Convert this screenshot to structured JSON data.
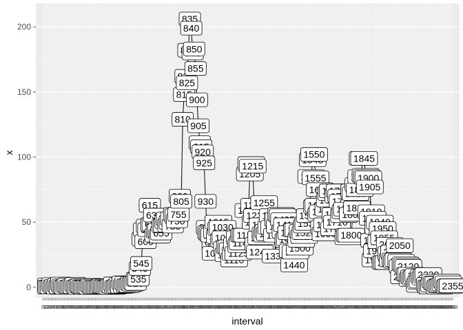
{
  "chart_data": {
    "type": "line",
    "xlabel": "interval",
    "ylabel": "x",
    "ylim": [
      -8,
      218
    ],
    "y_ticks": [
      0,
      50,
      100,
      150,
      200
    ],
    "grid": true,
    "background": "#ebebeb",
    "line_color": "#000000",
    "series": [
      {
        "values": [
          [
            0,
            1.7
          ],
          [
            5,
            0.3
          ],
          [
            10,
            0.1
          ],
          [
            15,
            0.2
          ],
          [
            20,
            0.1
          ],
          [
            25,
            2.1
          ],
          [
            30,
            0.5
          ],
          [
            35,
            0.9
          ],
          [
            40,
            0
          ],
          [
            45,
            1.5
          ],
          [
            50,
            0.3
          ],
          [
            55,
            0.1
          ],
          [
            100,
            0.3
          ],
          [
            105,
            2.5
          ],
          [
            110,
            1.1
          ],
          [
            115,
            0.3
          ],
          [
            120,
            0
          ],
          [
            125,
            1.1
          ],
          [
            130,
            1.8
          ],
          [
            135,
            0.2
          ],
          [
            140,
            0.2
          ],
          [
            145,
            0.7
          ],
          [
            150,
            0.3
          ],
          [
            155,
            2.2
          ],
          [
            200,
            0.3
          ],
          [
            205,
            0
          ],
          [
            210,
            1.1
          ],
          [
            215,
            1.2
          ],
          [
            220,
            0.4
          ],
          [
            225,
            0.1
          ],
          [
            230,
            0
          ],
          [
            235,
            0.3
          ],
          [
            240,
            0
          ],
          [
            245,
            0
          ],
          [
            250,
            1.5
          ],
          [
            255,
            0.9
          ],
          [
            300,
            0
          ],
          [
            305,
            0
          ],
          [
            310,
            0
          ],
          [
            315,
            0
          ],
          [
            320,
            0.2
          ],
          [
            325,
            0.6
          ],
          [
            330,
            1.2
          ],
          [
            335,
            0.5
          ],
          [
            340,
            0.5
          ],
          [
            345,
            0.1
          ],
          [
            350,
            0
          ],
          [
            355,
            0
          ],
          [
            400,
            1.2
          ],
          [
            405,
            0.9
          ],
          [
            410,
            2.6
          ],
          [
            415,
            0
          ],
          [
            420,
            0.4
          ],
          [
            425,
            0.9
          ],
          [
            430,
            2.1
          ],
          [
            435,
            0.6
          ],
          [
            440,
            3.5
          ],
          [
            445,
            0.8
          ],
          [
            450,
            3.1
          ],
          [
            455,
            1.1
          ],
          [
            500,
            1.5
          ],
          [
            505,
            1.3
          ],
          [
            510,
            3
          ],
          [
            515,
            2.2
          ],
          [
            520,
            3.3
          ],
          [
            525,
            3
          ],
          [
            530,
            6.3
          ],
          [
            535,
            6.3
          ],
          [
            540,
            14.4
          ],
          [
            545,
            18.3
          ],
          [
            550,
            37
          ],
          [
            555,
            44.3
          ],
          [
            600,
            35
          ],
          [
            605,
            47
          ],
          [
            610,
            44.2
          ],
          [
            615,
            63
          ],
          [
            620,
            48
          ],
          [
            625,
            48.6
          ],
          [
            630,
            55.4
          ],
          [
            635,
            40
          ],
          [
            640,
            43.2
          ],
          [
            645,
            43.6
          ],
          [
            650,
            39.3
          ],
          [
            655,
            41.6
          ],
          [
            700,
            47.2
          ],
          [
            705,
            47.5
          ],
          [
            710,
            50.2
          ],
          [
            715,
            52.4
          ],
          [
            720,
            47.6
          ],
          [
            725,
            49.9
          ],
          [
            730,
            52.7
          ],
          [
            735,
            47
          ],
          [
            740,
            56
          ],
          [
            745,
            55
          ],
          [
            750,
            51
          ],
          [
            755,
            56
          ],
          [
            800,
            70
          ],
          [
            805,
            66
          ],
          [
            810,
            129
          ],
          [
            815,
            148
          ],
          [
            820,
            162
          ],
          [
            825,
            157
          ],
          [
            830,
            182
          ],
          [
            835,
            206
          ],
          [
            840,
            199
          ],
          [
            845,
            180
          ],
          [
            850,
            183
          ],
          [
            855,
            168
          ],
          [
            900,
            144
          ],
          [
            905,
            124
          ],
          [
            910,
            111
          ],
          [
            915,
            108
          ],
          [
            920,
            104
          ],
          [
            925,
            95.6
          ],
          [
            930,
            66
          ],
          [
            935,
            46
          ],
          [
            940,
            42
          ],
          [
            945,
            41
          ],
          [
            950,
            40
          ],
          [
            955,
            33
          ],
          [
            1000,
            40
          ],
          [
            1005,
            26
          ],
          [
            1010,
            43
          ],
          [
            1015,
            50
          ],
          [
            1020,
            39
          ],
          [
            1025,
            45
          ],
          [
            1030,
            46
          ],
          [
            1035,
            36
          ],
          [
            1040,
            38
          ],
          [
            1045,
            30
          ],
          [
            1050,
            25
          ],
          [
            1055,
            31
          ],
          [
            1100,
            31
          ],
          [
            1105,
            29
          ],
          [
            1110,
            21
          ],
          [
            1115,
            26
          ],
          [
            1120,
            33
          ],
          [
            1125,
            26
          ],
          [
            1130,
            38
          ],
          [
            1135,
            32
          ],
          [
            1140,
            34
          ],
          [
            1145,
            40
          ],
          [
            1150,
            40
          ],
          [
            1155,
            40
          ],
          [
            1200,
            59
          ],
          [
            1205,
            87
          ],
          [
            1210,
            95
          ],
          [
            1215,
            93
          ],
          [
            1220,
            63
          ],
          [
            1225,
            50
          ],
          [
            1230,
            55
          ],
          [
            1235,
            33
          ],
          [
            1240,
            27
          ],
          [
            1245,
            38
          ],
          [
            1250,
            48
          ],
          [
            1255,
            65
          ],
          [
            1300,
            41
          ],
          [
            1305,
            40
          ],
          [
            1310,
            43
          ],
          [
            1315,
            41
          ],
          [
            1320,
            46
          ],
          [
            1325,
            55
          ],
          [
            1330,
            46
          ],
          [
            1335,
            24
          ],
          [
            1340,
            40
          ],
          [
            1345,
            52
          ],
          [
            1350,
            47
          ],
          [
            1355,
            56
          ],
          [
            1400,
            55
          ],
          [
            1405,
            52
          ],
          [
            1410,
            43
          ],
          [
            1415,
            48
          ],
          [
            1420,
            36
          ],
          [
            1425,
            37
          ],
          [
            1430,
            42
          ],
          [
            1435,
            28
          ],
          [
            1440,
            17
          ],
          [
            1445,
            27
          ],
          [
            1450,
            44
          ],
          [
            1455,
            44
          ],
          [
            1500,
            30
          ],
          [
            1505,
            36
          ],
          [
            1510,
            43
          ],
          [
            1515,
            39
          ],
          [
            1520,
            42
          ],
          [
            1525,
            47
          ],
          [
            1530,
            49
          ],
          [
            1535,
            55
          ],
          [
            1540,
            85
          ],
          [
            1545,
            98
          ],
          [
            1550,
            102
          ],
          [
            1555,
            84
          ],
          [
            1600,
            62
          ],
          [
            1605,
            63
          ],
          [
            1610,
            75
          ],
          [
            1615,
            56
          ],
          [
            1620,
            58
          ],
          [
            1625,
            46
          ],
          [
            1630,
            41
          ],
          [
            1635,
            48
          ],
          [
            1640,
            60
          ],
          [
            1645,
            67
          ],
          [
            1650,
            72
          ],
          [
            1655,
            74
          ],
          [
            1700,
            45
          ],
          [
            1705,
            56
          ],
          [
            1710,
            50
          ],
          [
            1715,
            70
          ],
          [
            1720,
            74
          ],
          [
            1725,
            70
          ],
          [
            1730,
            66
          ],
          [
            1735,
            55
          ],
          [
            1740,
            58
          ],
          [
            1745,
            60
          ],
          [
            1750,
            38
          ],
          [
            1755,
            40
          ],
          [
            1800,
            40
          ],
          [
            1805,
            56
          ],
          [
            1810,
            74
          ],
          [
            1815,
            72
          ],
          [
            1820,
            61
          ],
          [
            1825,
            79
          ],
          [
            1830,
            75
          ],
          [
            1835,
            85
          ],
          [
            1840,
            99
          ],
          [
            1845,
            99
          ],
          [
            1850,
            86
          ],
          [
            1855,
            85
          ],
          [
            1900,
            84
          ],
          [
            1905,
            77
          ],
          [
            1910,
            58
          ],
          [
            1915,
            53
          ],
          [
            1920,
            36
          ],
          [
            1925,
            21
          ],
          [
            1930,
            28
          ],
          [
            1935,
            46
          ],
          [
            1940,
            50
          ],
          [
            1945,
            35
          ],
          [
            1950,
            45
          ],
          [
            1955,
            38
          ],
          [
            2000,
            19
          ],
          [
            2005,
            19
          ],
          [
            2010,
            19
          ],
          [
            2015,
            33
          ],
          [
            2020,
            26
          ],
          [
            2025,
            21
          ],
          [
            2030,
            27
          ],
          [
            2035,
            21
          ],
          [
            2040,
            20
          ],
          [
            2045,
            21
          ],
          [
            2050,
            32
          ],
          [
            2055,
            20
          ],
          [
            2100,
            16
          ],
          [
            2105,
            8
          ],
          [
            2110,
            18
          ],
          [
            2115,
            17
          ],
          [
            2120,
            16
          ],
          [
            2125,
            10
          ],
          [
            2130,
            10
          ],
          [
            2135,
            6
          ],
          [
            2140,
            8
          ],
          [
            2145,
            7
          ],
          [
            2150,
            8
          ],
          [
            2155,
            9
          ],
          [
            2200,
            1.5
          ],
          [
            2205,
            3.7
          ],
          [
            2210,
            4.7
          ],
          [
            2215,
            8.7
          ],
          [
            2220,
            7.1
          ],
          [
            2225,
            8.8
          ],
          [
            2230,
            9.8
          ],
          [
            2235,
            2.2
          ],
          [
            2240,
            0.3
          ],
          [
            2245,
            0.1
          ],
          [
            2250,
            1.6
          ],
          [
            2255,
            4.6
          ],
          [
            2300,
            3.3
          ],
          [
            2305,
            3
          ],
          [
            2310,
            0
          ],
          [
            2315,
            1.1
          ],
          [
            2320,
            1
          ],
          [
            2325,
            1.6
          ],
          [
            2330,
            2.6
          ],
          [
            2335,
            4.7
          ],
          [
            2340,
            3.3
          ],
          [
            2345,
            0.6
          ],
          [
            2350,
            1.2
          ],
          [
            2355,
            1.1
          ]
        ]
      }
    ]
  }
}
